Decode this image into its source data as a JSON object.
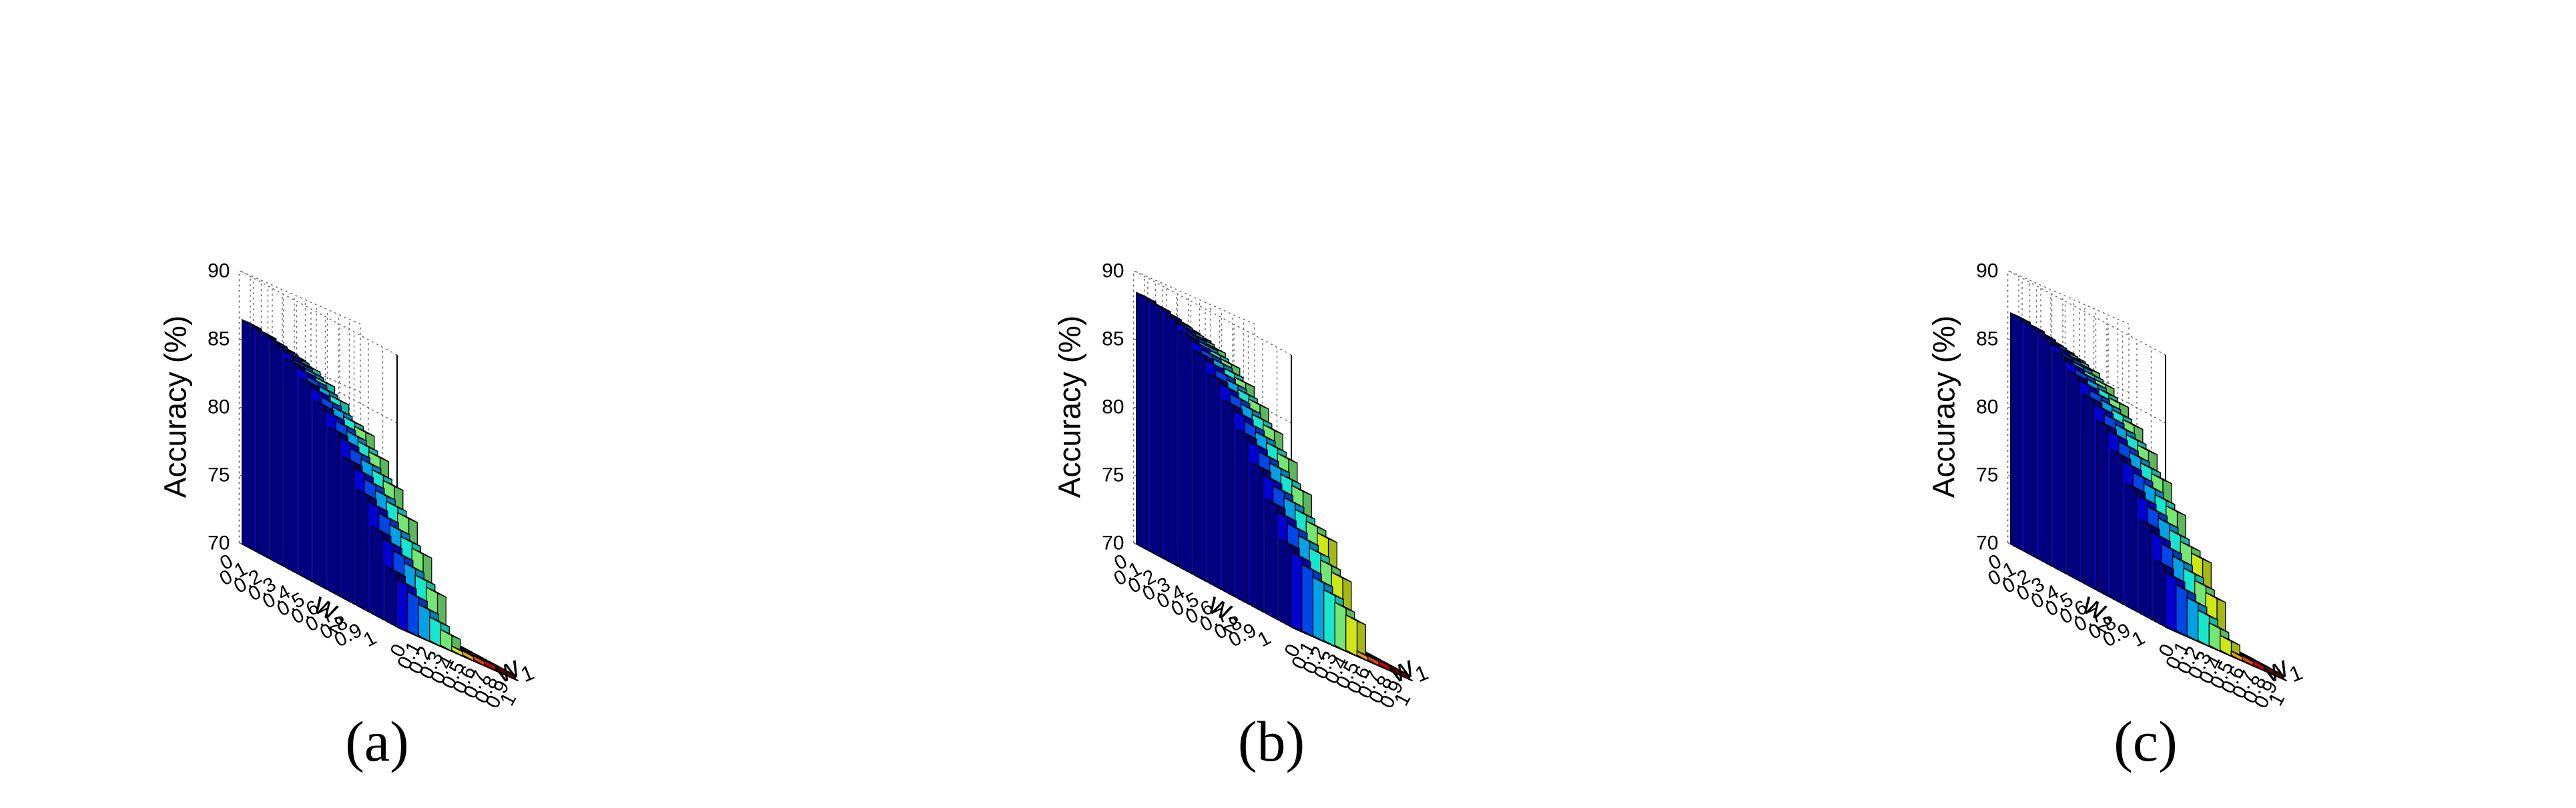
{
  "chart_data": [
    {
      "type": "bar3d",
      "panel_label": "(a)",
      "zlabel": "Accuracy (%)",
      "xlabel": "w",
      "xlabel_sub": "1",
      "ylabel": "w",
      "ylabel_sub": "2",
      "zlim": [
        70,
        90
      ],
      "z_ticks": [
        "70",
        "75",
        "80",
        "85",
        "90"
      ],
      "x_ticks": [
        "0",
        "0.1",
        "0.2",
        "0.3",
        "0.4",
        "0.5",
        "0.6",
        "0.7",
        "0.8",
        "0.9",
        "1"
      ],
      "y_ticks": [
        "0",
        "0.1",
        "0.2",
        "0.3",
        "0.4",
        "0.5",
        "0.6",
        "0.7",
        "0.8",
        "0.9",
        "1"
      ],
      "peak": 86.5,
      "cutoff": 0.55
    },
    {
      "type": "bar3d",
      "panel_label": "(b)",
      "zlabel": "Accuracy (%)",
      "xlabel": "w",
      "xlabel_sub": "1",
      "ylabel": "w",
      "ylabel_sub": "2",
      "zlim": [
        70,
        90
      ],
      "z_ticks": [
        "70",
        "75",
        "80",
        "85",
        "90"
      ],
      "x_ticks": [
        "0",
        "0.1",
        "0.2",
        "0.3",
        "0.4",
        "0.5",
        "0.6",
        "0.7",
        "0.8",
        "0.9",
        "1"
      ],
      "y_ticks": [
        "0",
        "0.1",
        "0.2",
        "0.3",
        "0.4",
        "0.5",
        "0.6",
        "0.7",
        "0.8",
        "0.9",
        "1"
      ],
      "peak": 88.5,
      "cutoff": 0.62
    },
    {
      "type": "bar3d",
      "panel_label": "(c)",
      "zlabel": "Accuracy (%)",
      "xlabel": "w",
      "xlabel_sub": "1",
      "ylabel": "w",
      "ylabel_sub": "2",
      "zlim": [
        70,
        90
      ],
      "z_ticks": [
        "70",
        "75",
        "80",
        "85",
        "90"
      ],
      "x_ticks": [
        "0",
        "0.1",
        "0.2",
        "0.3",
        "0.4",
        "0.5",
        "0.6",
        "0.7",
        "0.8",
        "0.9",
        "1"
      ],
      "y_ticks": [
        "0",
        "0.1",
        "0.2",
        "0.3",
        "0.4",
        "0.5",
        "0.6",
        "0.7",
        "0.8",
        "0.9",
        "1"
      ],
      "peak": 87.0,
      "cutoff": 0.62
    }
  ],
  "colors": {
    "colormap": [
      "#00008f",
      "#0000ff",
      "#0080ff",
      "#00ffff",
      "#80ff80",
      "#ffff00",
      "#ff8000",
      "#ff0000",
      "#800000"
    ],
    "edge": "#000000",
    "grid": "#666666",
    "axis": "#000000"
  }
}
